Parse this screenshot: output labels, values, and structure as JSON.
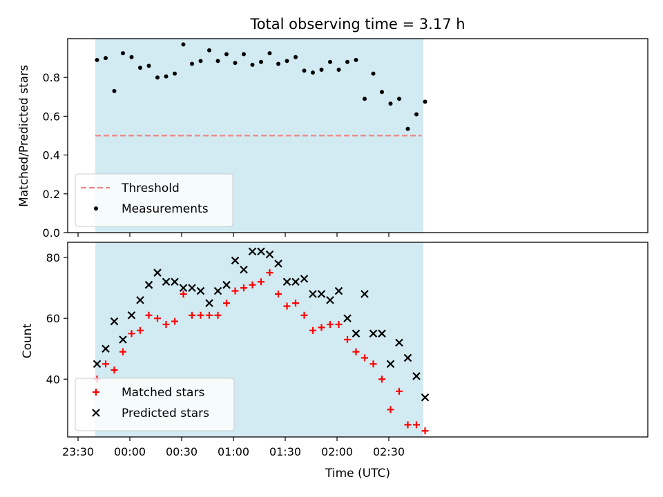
{
  "figure": {
    "title": "Total observing time = 3.17 h"
  },
  "chart_data": [
    {
      "type": "scatter",
      "xlabel": "",
      "ylabel": "Matched/Predicted stars",
      "xlim": [
        -36,
        300
      ],
      "ylim": [
        0,
        1.0
      ],
      "yticks": [
        0.0,
        0.2,
        0.4,
        0.6,
        0.8
      ],
      "ytick_labels": [
        "0.0",
        "0.2",
        "0.4",
        "0.6",
        "0.8"
      ],
      "xticks": [
        -30,
        0,
        30,
        60,
        90,
        120,
        150
      ],
      "shaded_span": {
        "x": [
          -20,
          170
        ],
        "color": "#add8e6"
      },
      "legend_position": "lower-left",
      "threshold": {
        "name": "Threshold",
        "value": 0.5,
        "x": [
          -20,
          169
        ],
        "color": "#f08080"
      },
      "series": [
        {
          "name": "Measurements",
          "color": "#000000",
          "marker": "dot",
          "x": [
            -19,
            -14,
            -9,
            -4,
            1,
            6,
            11,
            16,
            21,
            26,
            31,
            36,
            41,
            46,
            51,
            56,
            61,
            66,
            71,
            76,
            81,
            86,
            91,
            96,
            101,
            106,
            111,
            116,
            121,
            126,
            131,
            136,
            141,
            146,
            151,
            156,
            161,
            166,
            171
          ],
          "y": [
            0.89,
            0.9,
            0.73,
            0.925,
            0.905,
            0.85,
            0.86,
            0.8,
            0.805,
            0.82,
            0.97,
            0.87,
            0.885,
            0.94,
            0.885,
            0.92,
            0.875,
            0.92,
            0.865,
            0.88,
            0.925,
            0.87,
            0.885,
            0.905,
            0.835,
            0.825,
            0.84,
            0.88,
            0.84,
            0.88,
            0.89,
            0.69,
            0.82,
            0.725,
            0.665,
            0.69,
            0.535,
            0.61,
            0.675
          ]
        }
      ]
    },
    {
      "type": "scatter",
      "xlabel": "Time (UTC)",
      "ylabel": "Count",
      "xlim": [
        -36,
        300
      ],
      "ylim": [
        21,
        85
      ],
      "yticks": [
        40,
        60,
        80
      ],
      "ytick_labels": [
        "40",
        "60",
        "80"
      ],
      "xticks": [
        -30,
        0,
        30,
        60,
        90,
        120,
        150
      ],
      "xtick_labels": [
        "23:30",
        "00:00",
        "00:30",
        "01:00",
        "01:30",
        "02:00",
        "02:30"
      ],
      "shaded_span": {
        "x": [
          -20,
          170
        ],
        "color": "#add8e6"
      },
      "legend_position": "lower-left",
      "series": [
        {
          "name": "Matched stars",
          "color": "#ff0000",
          "marker": "plus",
          "x": [
            -19,
            -14,
            -9,
            -4,
            1,
            6,
            11,
            16,
            21,
            26,
            31,
            36,
            41,
            46,
            51,
            56,
            61,
            66,
            71,
            76,
            81,
            86,
            91,
            96,
            101,
            106,
            111,
            116,
            121,
            126,
            131,
            136,
            141,
            146,
            151,
            156,
            161,
            166,
            171
          ],
          "y": [
            40,
            45,
            43,
            49,
            55,
            56,
            61,
            60,
            58,
            59,
            68,
            61,
            61,
            61,
            61,
            65,
            69,
            70,
            71,
            72,
            75,
            68,
            64,
            65,
            61,
            56,
            57,
            58,
            58,
            53,
            49,
            47,
            45,
            40,
            30,
            36,
            25,
            25,
            23
          ]
        },
        {
          "name": "Predicted stars",
          "color": "#000000",
          "marker": "x",
          "x": [
            -19,
            -14,
            -9,
            -4,
            1,
            6,
            11,
            16,
            21,
            26,
            31,
            36,
            41,
            46,
            51,
            56,
            61,
            66,
            71,
            76,
            81,
            86,
            91,
            96,
            101,
            106,
            111,
            116,
            121,
            126,
            131,
            136,
            141,
            146,
            151,
            156,
            161,
            166,
            171
          ],
          "y": [
            45,
            50,
            59,
            53,
            61,
            66,
            71,
            75,
            72,
            72,
            70,
            70,
            69,
            65,
            69,
            71,
            79,
            76,
            82,
            82,
            81,
            78,
            72,
            72,
            73,
            68,
            68,
            66,
            69,
            60,
            55,
            68,
            55,
            55,
            45,
            52,
            47,
            41,
            34
          ]
        }
      ]
    }
  ]
}
